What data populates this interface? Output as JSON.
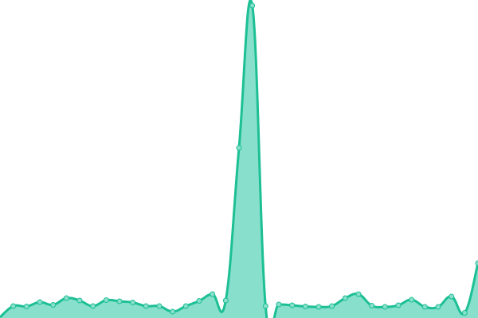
{
  "chart_data": {
    "type": "area",
    "title": "",
    "xlabel": "",
    "ylabel": "",
    "x": [
      0,
      1,
      2,
      3,
      4,
      5,
      6,
      7,
      8,
      9,
      10,
      11,
      12,
      13,
      14,
      15,
      16,
      17,
      18,
      19,
      20,
      21,
      22,
      23,
      24,
      25,
      26,
      27,
      28,
      29,
      30,
      31,
      32,
      33,
      34,
      35,
      36
    ],
    "values": [
      1,
      15,
      14.5,
      20,
      16.5,
      25,
      22,
      15,
      22.5,
      21,
      19.5,
      15,
      15,
      8,
      15,
      21.5,
      30,
      22,
      214,
      393,
      15,
      17,
      16,
      14.5,
      14,
      15,
      25,
      30,
      15.5,
      14,
      16,
      23,
      14,
      14,
      27,
      6.5,
      69
    ],
    "ylim": [
      0,
      400
    ],
    "grid": false,
    "axes_visible": false,
    "smooth": true,
    "colors": {
      "line": "#1dbf95",
      "fill": "#88e0cc",
      "point_fill": "#88e0cc",
      "point_stroke": "#1dbf95"
    }
  }
}
